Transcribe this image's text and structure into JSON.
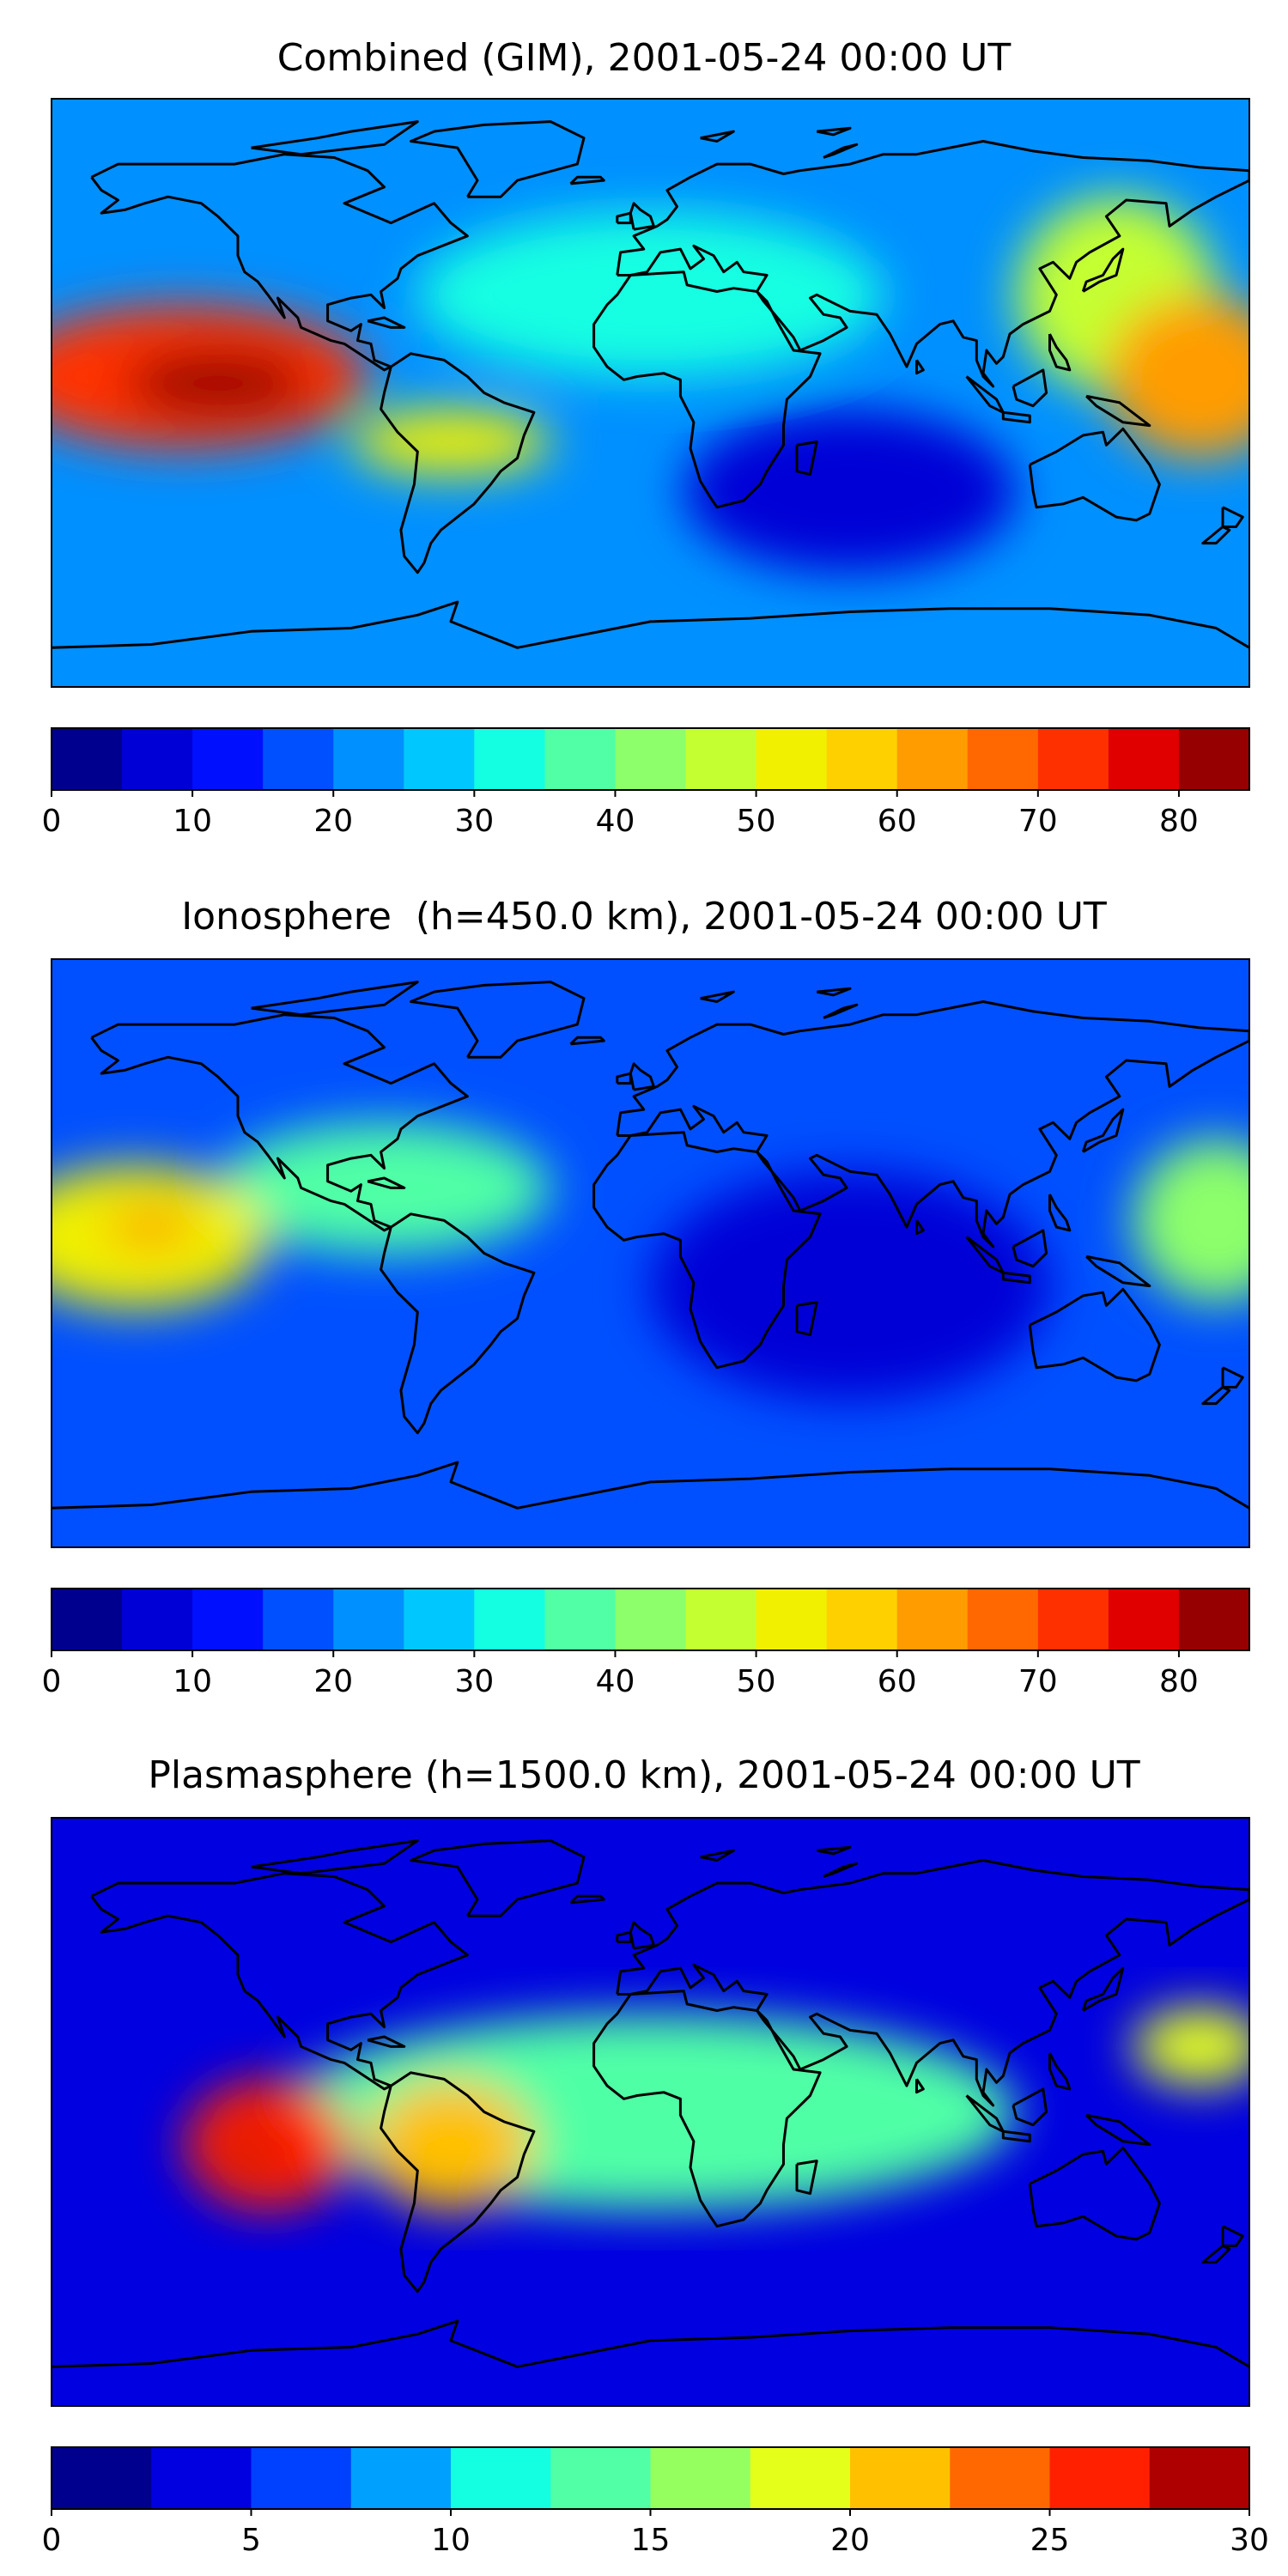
{
  "panels": [
    {
      "title": "Combined (GIM), 2001-05-24 00:00 UT",
      "colorbar": {
        "vmin": 0,
        "vmax": 85,
        "step": 5,
        "ticks": [
          "0",
          "10",
          "20",
          "30",
          "40",
          "50",
          "60",
          "70",
          "80"
        ],
        "tick_values": [
          0,
          10,
          20,
          30,
          40,
          50,
          60,
          70,
          80
        ],
        "colors": [
          "#00008f",
          "#0000d6",
          "#0010ff",
          "#0050ff",
          "#0090ff",
          "#00c8ff",
          "#14ffe2",
          "#50ffa6",
          "#8cff6a",
          "#c4ff32",
          "#f0f000",
          "#ffd000",
          "#ff9c00",
          "#ff6800",
          "#ff3000",
          "#e00000",
          "#960000"
        ]
      },
      "map_blobs": [
        {
          "lon": -140,
          "lat": 5,
          "rx": 55,
          "ry": 22,
          "value": 70
        },
        {
          "lon": -130,
          "lat": 3,
          "rx": 28,
          "ry": 10,
          "value": 80
        },
        {
          "lon": 165,
          "lat": 5,
          "rx": 28,
          "ry": 25,
          "value": 62
        },
        {
          "lon": -60,
          "lat": -15,
          "rx": 30,
          "ry": 10,
          "value": 52
        },
        {
          "lon": 0,
          "lat": 30,
          "rx": 70,
          "ry": 25,
          "value": 30
        },
        {
          "lon": 140,
          "lat": 30,
          "rx": 30,
          "ry": 30,
          "value": 45
        },
        {
          "lon": 60,
          "lat": -30,
          "rx": 50,
          "ry": 25,
          "value": 8
        }
      ],
      "background_value": 20
    },
    {
      "title": "Ionosphere  (h=450.0 km), 2001-05-24 00:00 UT",
      "colorbar": {
        "vmin": 0,
        "vmax": 85,
        "step": 5,
        "ticks": [
          "0",
          "10",
          "20",
          "30",
          "40",
          "50",
          "60",
          "70",
          "80"
        ],
        "tick_values": [
          0,
          10,
          20,
          30,
          40,
          50,
          60,
          70,
          80
        ],
        "colors": [
          "#00008f",
          "#0000d6",
          "#0010ff",
          "#0050ff",
          "#0090ff",
          "#00c8ff",
          "#14ffe2",
          "#50ffa6",
          "#8cff6a",
          "#c4ff32",
          "#f0f000",
          "#ffd000",
          "#ff9c00",
          "#ff6800",
          "#ff3000",
          "#e00000",
          "#960000"
        ]
      },
      "map_blobs": [
        {
          "lon": -155,
          "lat": 5,
          "rx": 40,
          "ry": 22,
          "value": 50
        },
        {
          "lon": -150,
          "lat": 8,
          "rx": 14,
          "ry": 6,
          "value": 60
        },
        {
          "lon": 170,
          "lat": 10,
          "rx": 25,
          "ry": 25,
          "value": 40
        },
        {
          "lon": 60,
          "lat": -10,
          "rx": 60,
          "ry": 35,
          "value": 5
        },
        {
          "lon": -80,
          "lat": 20,
          "rx": 50,
          "ry": 20,
          "value": 35
        }
      ],
      "background_value": 15
    },
    {
      "title": "Plasmasphere (h=1500.0 km), 2001-05-24 00:00 UT",
      "colorbar": {
        "vmin": 0,
        "vmax": 30,
        "step": 2.5,
        "ticks": [
          "0",
          "5",
          "10",
          "15",
          "20",
          "25",
          "30"
        ],
        "tick_values": [
          0,
          5,
          10,
          15,
          20,
          25,
          30
        ],
        "colors": [
          "#00008f",
          "#0000e0",
          "#0040ff",
          "#00a0ff",
          "#14ffe2",
          "#50ffa6",
          "#96ff60",
          "#e4ff1a",
          "#ffc000",
          "#ff6800",
          "#ff2000",
          "#ae0000"
        ]
      },
      "map_blobs": [
        {
          "lon": -115,
          "lat": -10,
          "rx": 25,
          "ry": 20,
          "value": 25
        },
        {
          "lon": -120,
          "lat": -12,
          "rx": 8,
          "ry": 5,
          "value": 29
        },
        {
          "lon": -60,
          "lat": -10,
          "rx": 25,
          "ry": 20,
          "value": 20
        },
        {
          "lon": 165,
          "lat": 20,
          "rx": 20,
          "ry": 12,
          "value": 19
        },
        {
          "lon": 0,
          "lat": 0,
          "rx": 110,
          "ry": 30,
          "value": 13
        }
      ],
      "background_value": 3
    }
  ]
}
